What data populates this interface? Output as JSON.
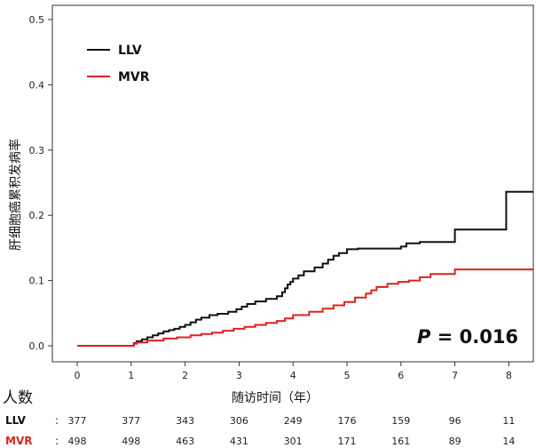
{
  "chart_data": {
    "type": "line",
    "subtype": "kaplan-meier-step",
    "ylabel": "肝细胞癌累积发病率",
    "xlabel": "随访时间（年）",
    "xlim": [
      -0.45,
      8.45
    ],
    "ylim": [
      0,
      0.5
    ],
    "x_ticks": [
      "0",
      "1",
      "2",
      "3",
      "4",
      "5",
      "6",
      "7",
      "8"
    ],
    "y_ticks": [
      "0.0",
      "0.1",
      "0.2",
      "0.3",
      "0.4",
      "0.5"
    ],
    "legend_position": "top-left",
    "annotation": {
      "italic": "P",
      "rest": " = 0.016"
    },
    "series": [
      {
        "name": "LLV",
        "color": "#111111",
        "steps": [
          [
            0,
            0
          ],
          [
            1.0,
            0
          ],
          [
            1.05,
            0.004
          ],
          [
            1.1,
            0.007
          ],
          [
            1.2,
            0.01
          ],
          [
            1.3,
            0.013
          ],
          [
            1.4,
            0.016
          ],
          [
            1.5,
            0.019
          ],
          [
            1.6,
            0.022
          ],
          [
            1.7,
            0.024
          ],
          [
            1.8,
            0.026
          ],
          [
            1.9,
            0.029
          ],
          [
            2.0,
            0.032
          ],
          [
            2.1,
            0.036
          ],
          [
            2.2,
            0.04
          ],
          [
            2.3,
            0.043
          ],
          [
            2.45,
            0.047
          ],
          [
            2.6,
            0.049
          ],
          [
            2.8,
            0.052
          ],
          [
            2.95,
            0.056
          ],
          [
            3.05,
            0.06
          ],
          [
            3.15,
            0.064
          ],
          [
            3.3,
            0.068
          ],
          [
            3.5,
            0.072
          ],
          [
            3.7,
            0.076
          ],
          [
            3.8,
            0.082
          ],
          [
            3.85,
            0.088
          ],
          [
            3.9,
            0.094
          ],
          [
            3.95,
            0.098
          ],
          [
            4.0,
            0.103
          ],
          [
            4.1,
            0.108
          ],
          [
            4.2,
            0.114
          ],
          [
            4.4,
            0.12
          ],
          [
            4.55,
            0.126
          ],
          [
            4.65,
            0.132
          ],
          [
            4.75,
            0.138
          ],
          [
            4.85,
            0.142
          ],
          [
            5.0,
            0.148
          ],
          [
            5.2,
            0.149
          ],
          [
            6.0,
            0.152
          ],
          [
            6.1,
            0.157
          ],
          [
            6.35,
            0.159
          ],
          [
            7.0,
            0.178
          ],
          [
            7.5,
            0.178
          ],
          [
            7.95,
            0.236
          ],
          [
            8.45,
            0.236
          ]
        ]
      },
      {
        "name": "MVR",
        "color": "#e02020",
        "steps": [
          [
            0,
            0
          ],
          [
            1.0,
            0
          ],
          [
            1.05,
            0.003
          ],
          [
            1.1,
            0.005
          ],
          [
            1.3,
            0.008
          ],
          [
            1.6,
            0.011
          ],
          [
            1.85,
            0.013
          ],
          [
            2.1,
            0.016
          ],
          [
            2.3,
            0.018
          ],
          [
            2.5,
            0.02
          ],
          [
            2.7,
            0.023
          ],
          [
            2.9,
            0.026
          ],
          [
            3.1,
            0.029
          ],
          [
            3.3,
            0.032
          ],
          [
            3.5,
            0.035
          ],
          [
            3.7,
            0.038
          ],
          [
            3.85,
            0.042
          ],
          [
            4.0,
            0.047
          ],
          [
            4.3,
            0.052
          ],
          [
            4.55,
            0.057
          ],
          [
            4.75,
            0.062
          ],
          [
            4.95,
            0.067
          ],
          [
            5.15,
            0.074
          ],
          [
            5.35,
            0.08
          ],
          [
            5.45,
            0.085
          ],
          [
            5.55,
            0.09
          ],
          [
            5.75,
            0.095
          ],
          [
            5.95,
            0.098
          ],
          [
            6.15,
            0.1
          ],
          [
            6.35,
            0.105
          ],
          [
            6.55,
            0.11
          ],
          [
            7.0,
            0.117
          ],
          [
            8.45,
            0.117
          ]
        ]
      }
    ],
    "risk_table": {
      "title": "人数",
      "rows": [
        {
          "label": "LLV",
          "color": "#111111",
          "separator": ":",
          "values": [
            "377",
            "377",
            "343",
            "306",
            "249",
            "176",
            "159",
            "96",
            "11"
          ]
        },
        {
          "label": "MVR",
          "color": "#e02020",
          "separator": ":",
          "values": [
            "498",
            "498",
            "463",
            "431",
            "301",
            "171",
            "161",
            "89",
            "14"
          ]
        }
      ]
    }
  }
}
